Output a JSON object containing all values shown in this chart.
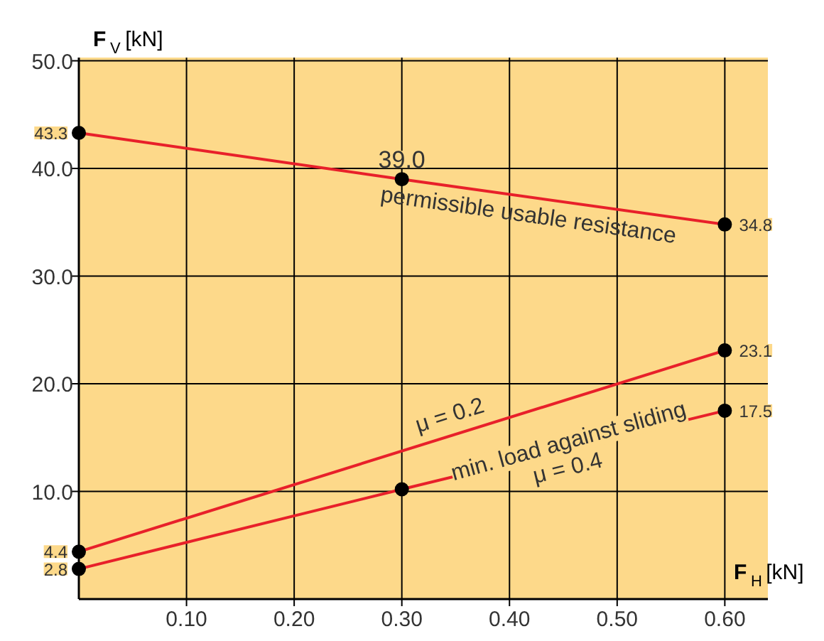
{
  "chart_data": {
    "type": "line",
    "xlabel": "F$_{H}$ [kN]",
    "ylabel": "F$_{V}$ [kN]",
    "xlim": [
      0,
      0.64
    ],
    "ylim": [
      0,
      50.3
    ],
    "xticks": [
      {
        "value": 0.1,
        "label": "0.10"
      },
      {
        "value": 0.2,
        "label": "0.20"
      },
      {
        "value": 0.3,
        "label": "0.30"
      },
      {
        "value": 0.4,
        "label": "0.40"
      },
      {
        "value": 0.5,
        "label": "0.50"
      },
      {
        "value": 0.6,
        "label": "0.60"
      }
    ],
    "yticks": [
      {
        "value": 10,
        "label": "10.0"
      },
      {
        "value": 20,
        "label": "20.0"
      },
      {
        "value": 30,
        "label": "30.0"
      },
      {
        "value": 40,
        "label": "40.0"
      },
      {
        "value": 50,
        "label": "50.0"
      }
    ],
    "grid": true,
    "legend": false,
    "marker": "circle",
    "line_style": "solid",
    "series": [
      {
        "name": "permissible usable resistance",
        "color": "#e8202a",
        "x": [
          0,
          0.3,
          0.6
        ],
        "values": [
          43.3,
          39.0,
          34.8
        ],
        "value_labels": [
          "43.3",
          "39.0",
          "34.8"
        ]
      },
      {
        "name": "μ = 0.2",
        "color": "#e8202a",
        "x": [
          0,
          0.6
        ],
        "values": [
          4.4,
          23.1
        ],
        "value_labels": [
          "4.4",
          "23.1"
        ]
      },
      {
        "name": "μ = 0.4",
        "color": "#e8202a",
        "x": [
          0,
          0.3,
          0.6
        ],
        "values": [
          2.8,
          10.2,
          17.5
        ],
        "value_labels": [
          "2.8",
          null,
          "17.5"
        ]
      }
    ],
    "annotations": [
      {
        "text": "min. load against sliding",
        "x": 0.455,
        "y": 14.6
      }
    ]
  }
}
